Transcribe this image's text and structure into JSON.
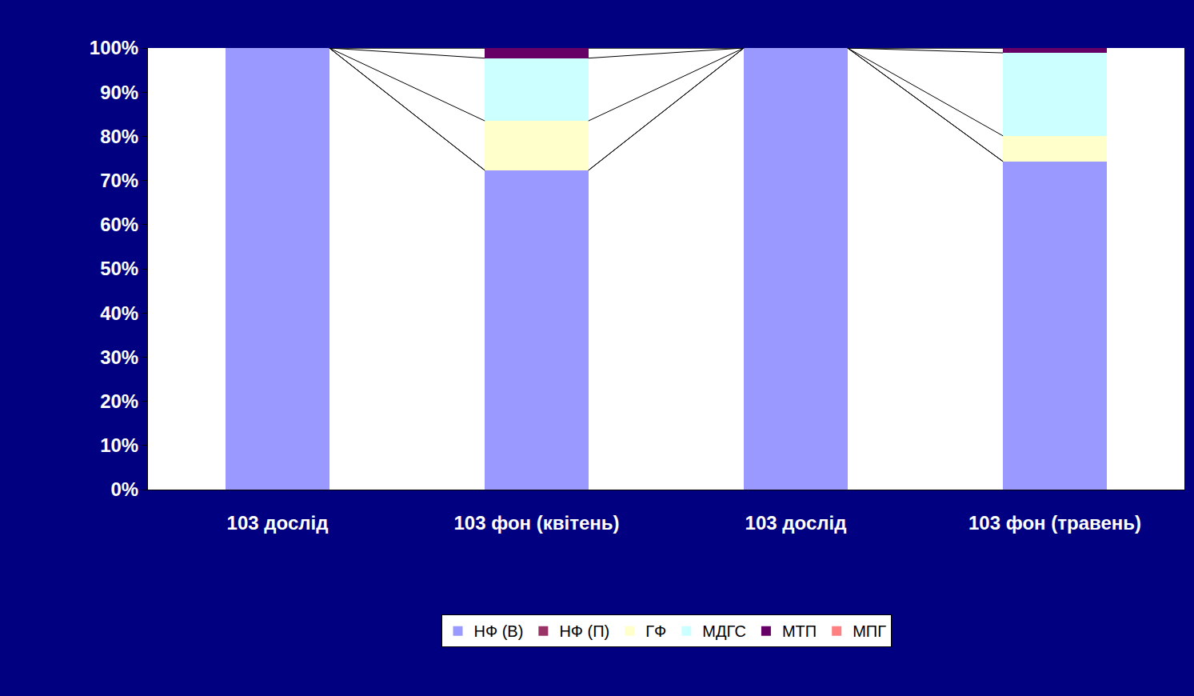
{
  "chart_data": {
    "type": "bar",
    "stacked": true,
    "categories": [
      "103 дослід",
      "103 фон (квітень)",
      "103 дослід",
      "103 фон (травень)"
    ],
    "series": [
      {
        "name": "НФ (В)",
        "color": "#9999ff",
        "values": [
          100,
          72.3,
          100,
          74.3
        ]
      },
      {
        "name": "НФ (П)",
        "color": "#993366",
        "values": [
          0,
          0,
          0,
          0
        ]
      },
      {
        "name": "ГФ",
        "color": "#ffffcc",
        "values": [
          0,
          11.2,
          0,
          5.8
        ]
      },
      {
        "name": "МДГС",
        "color": "#ccffff",
        "values": [
          0,
          14.2,
          0,
          18.8
        ]
      },
      {
        "name": "МТП",
        "color": "#660066",
        "values": [
          0,
          2.3,
          0,
          1.1
        ]
      },
      {
        "name": "МПГ",
        "color": "#ff8080",
        "values": [
          0,
          0,
          0,
          0
        ]
      }
    ],
    "ylim": [
      0,
      100
    ],
    "yticks": [
      {
        "value": 0,
        "label": "0%"
      },
      {
        "value": 10,
        "label": "10%"
      },
      {
        "value": 20,
        "label": "20%"
      },
      {
        "value": 30,
        "label": "30%"
      },
      {
        "value": 40,
        "label": "40%"
      },
      {
        "value": 50,
        "label": "50%"
      },
      {
        "value": 60,
        "label": "60%"
      },
      {
        "value": 70,
        "label": "70%"
      },
      {
        "value": 80,
        "label": "80%"
      },
      {
        "value": 90,
        "label": "90%"
      },
      {
        "value": 100,
        "label": "100%"
      }
    ],
    "grid": false,
    "legend": "bottom"
  }
}
